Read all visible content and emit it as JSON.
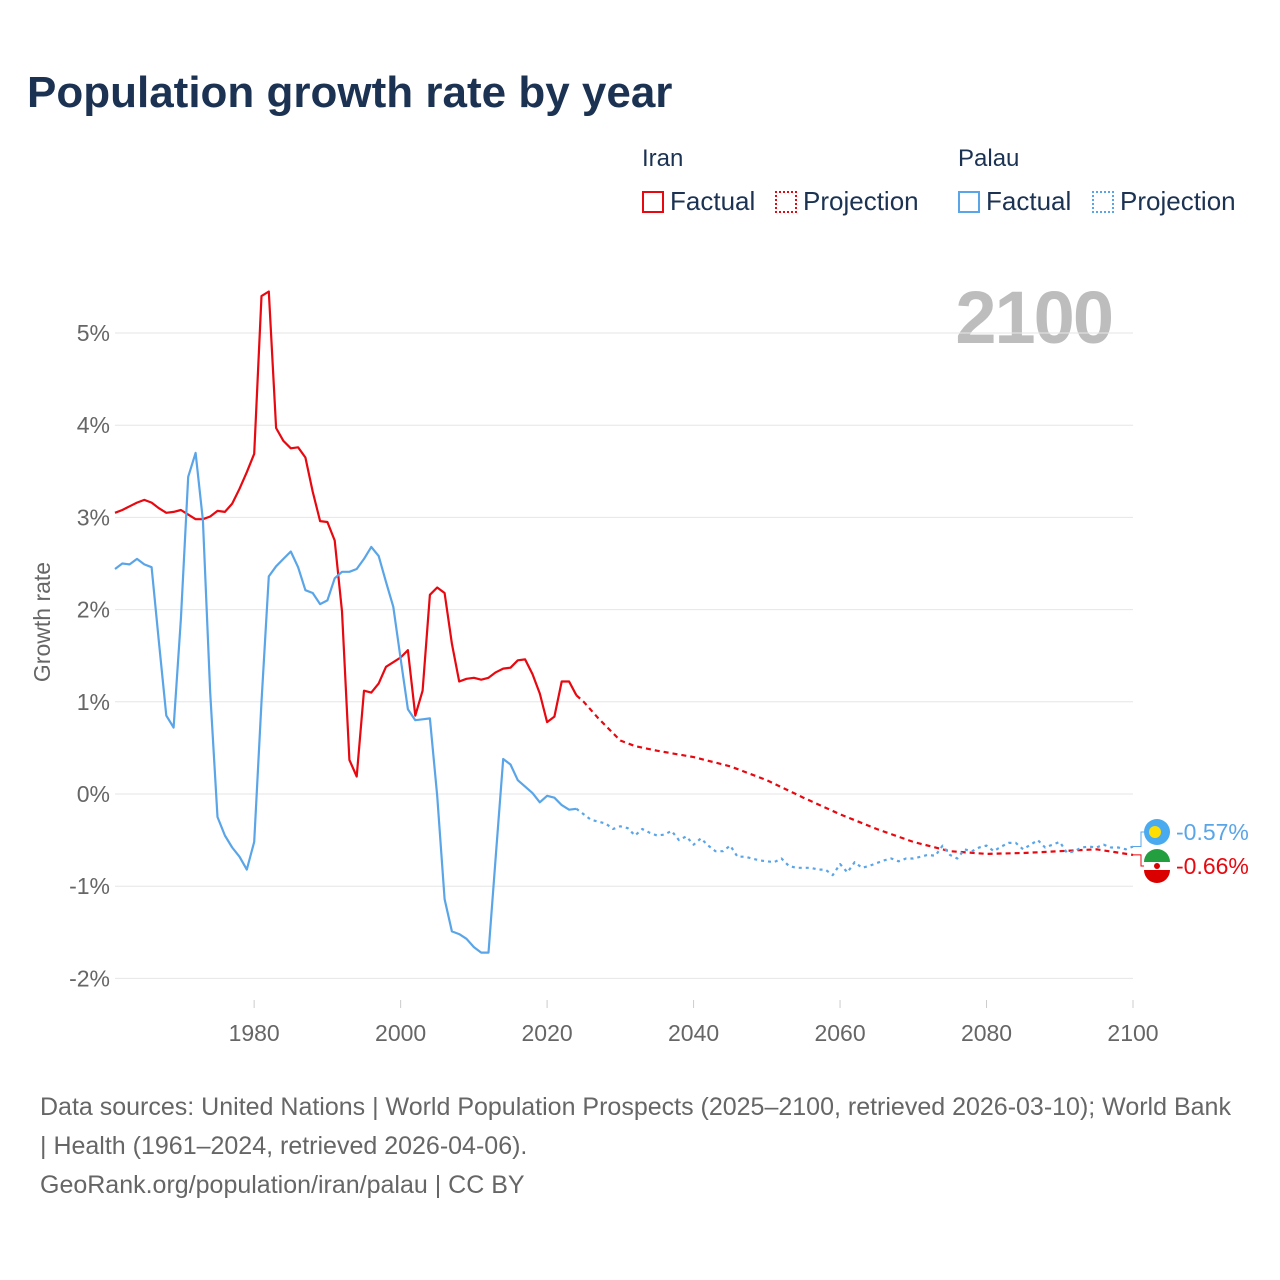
{
  "title": "Population growth rate by year",
  "big_year": "2100",
  "legend": {
    "groups": [
      {
        "name": "Iran",
        "factual": "Factual",
        "projection": "Projection",
        "color": "#e8080f"
      },
      {
        "name": "Palau",
        "factual": "Factual",
        "projection": "Projection",
        "color": "#5aa5e8"
      }
    ]
  },
  "footer": {
    "sources": "Data sources: United Nations | World Population Prospects (2025–2100, retrieved 2026-03-10); World Bank | Health (1961–2024, retrieved 2026-04-06).",
    "credit": "GeoRank.org/population/iran/palau | CC BY"
  },
  "chart_data": {
    "type": "line",
    "title": "Population growth rate by year",
    "xlabel": "",
    "ylabel": "Growth rate",
    "xlim": [
      1961,
      2100
    ],
    "ylim": [
      -2.2,
      5.7
    ],
    "x_ticks": [
      1980,
      2000,
      2020,
      2040,
      2060,
      2080,
      2100
    ],
    "y_ticks": [
      {
        "v": 5,
        "label": "5%"
      },
      {
        "v": 4,
        "label": "4%"
      },
      {
        "v": 3,
        "label": "3%"
      },
      {
        "v": 2,
        "label": "2%"
      },
      {
        "v": 1,
        "label": "1%"
      },
      {
        "v": 0,
        "label": "0%"
      },
      {
        "v": -1,
        "label": "-1%"
      },
      {
        "v": -2,
        "label": "-2%"
      }
    ],
    "grid": true,
    "legend_position": "top-right",
    "series": [
      {
        "name": "Iran Factual",
        "country": "Iran",
        "style": "solid",
        "color": "#e8080f",
        "x_start": 1961,
        "values": [
          3.05,
          3.08,
          3.12,
          3.16,
          3.19,
          3.16,
          3.1,
          3.05,
          3.06,
          3.08,
          3.03,
          2.98,
          2.98,
          3.01,
          3.07,
          3.06,
          3.15,
          3.31,
          3.49,
          3.69,
          5.4,
          5.45,
          3.97,
          3.83,
          3.75,
          3.76,
          3.65,
          3.28,
          2.96,
          2.95,
          2.75,
          1.98,
          0.37,
          0.19,
          1.12,
          1.1,
          1.2,
          1.38,
          1.43,
          1.48,
          1.56,
          0.85,
          1.12,
          2.16,
          2.24,
          2.18,
          1.63,
          1.22,
          1.25,
          1.26,
          1.24,
          1.26,
          1.32,
          1.36,
          1.37,
          1.45,
          1.46,
          1.3,
          1.09,
          0.78,
          0.84,
          1.22,
          1.22,
          1.07
        ]
      },
      {
        "name": "Iran Projection",
        "country": "Iran",
        "style": "dashed",
        "color": "#e8080f",
        "x": [
          2024,
          2025,
          2027,
          2030,
          2032,
          2035,
          2040,
          2045,
          2050,
          2055,
          2060,
          2065,
          2070,
          2075,
          2080,
          2085,
          2090,
          2095,
          2100
        ],
        "values": [
          1.07,
          1.0,
          0.82,
          0.58,
          0.52,
          0.47,
          0.4,
          0.3,
          0.15,
          -0.04,
          -0.22,
          -0.38,
          -0.52,
          -0.62,
          -0.65,
          -0.64,
          -0.62,
          -0.6,
          -0.66
        ]
      },
      {
        "name": "Palau Factual",
        "country": "Palau",
        "style": "solid",
        "color": "#5aa5e8",
        "x_start": 1961,
        "values": [
          2.44,
          2.5,
          2.49,
          2.55,
          2.49,
          2.46,
          1.65,
          0.85,
          0.72,
          1.9,
          3.44,
          3.7,
          2.97,
          1.1,
          -0.25,
          -0.45,
          -0.58,
          -0.68,
          -0.82,
          -0.52,
          1.0,
          2.36,
          2.47,
          2.55,
          2.63,
          2.46,
          2.21,
          2.18,
          2.06,
          2.1,
          2.34,
          2.41,
          2.41,
          2.44,
          2.55,
          2.68,
          2.58,
          2.3,
          2.03,
          1.47,
          0.92,
          0.8,
          0.81,
          0.82,
          -0.02,
          -1.14,
          -1.49,
          -1.52,
          -1.57,
          -1.66,
          -1.72,
          -1.72,
          -0.67,
          0.38,
          0.32,
          0.15,
          0.08,
          0.01,
          -0.09,
          -0.02,
          -0.04,
          -0.12,
          -0.17,
          -0.16
        ]
      },
      {
        "name": "Palau Projection",
        "country": "Palau",
        "style": "dotted",
        "color": "#5aa5e8",
        "x_start": 2024,
        "values": [
          -0.16,
          -0.22,
          -0.28,
          -0.3,
          -0.32,
          -0.38,
          -0.35,
          -0.37,
          -0.45,
          -0.38,
          -0.42,
          -0.45,
          -0.44,
          -0.4,
          -0.5,
          -0.46,
          -0.55,
          -0.48,
          -0.56,
          -0.62,
          -0.62,
          -0.56,
          -0.68,
          -0.68,
          -0.7,
          -0.72,
          -0.73,
          -0.74,
          -0.7,
          -0.78,
          -0.8,
          -0.8,
          -0.8,
          -0.82,
          -0.82,
          -0.88,
          -0.76,
          -0.85,
          -0.74,
          -0.8,
          -0.78,
          -0.75,
          -0.72,
          -0.7,
          -0.73,
          -0.7,
          -0.7,
          -0.68,
          -0.66,
          -0.67,
          -0.56,
          -0.66,
          -0.7,
          -0.6,
          -0.62,
          -0.58,
          -0.56,
          -0.62,
          -0.57,
          -0.53,
          -0.53,
          -0.6,
          -0.55,
          -0.5,
          -0.58,
          -0.55,
          -0.52,
          -0.64,
          -0.62,
          -0.58,
          -0.57,
          -0.58,
          -0.55,
          -0.58,
          -0.58,
          -0.6,
          -0.57
        ]
      }
    ],
    "end_labels": [
      {
        "country": "Palau",
        "label": "-0.57%",
        "value": -0.57,
        "color": "#5aa5e8"
      },
      {
        "country": "Iran",
        "label": "-0.66%",
        "value": -0.66,
        "color": "#e8080f"
      }
    ]
  }
}
